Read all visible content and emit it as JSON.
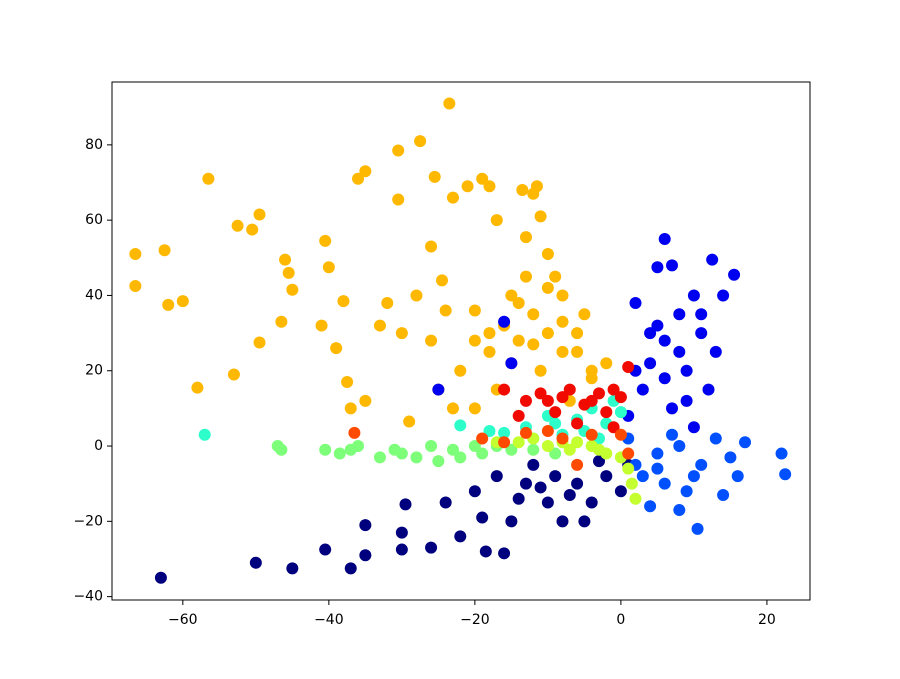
{
  "chart_data": {
    "type": "scatter",
    "xlim": [
      -69.7,
      25.9
    ],
    "ylim": [
      -40.9,
      96.7
    ],
    "xticks": [
      {
        "value": -60,
        "label": "−60"
      },
      {
        "value": -40,
        "label": "−40"
      },
      {
        "value": -20,
        "label": "−20"
      },
      0,
      20
    ],
    "yticks": [
      {
        "value": -40,
        "label": "−40"
      },
      {
        "value": -20,
        "label": "−20"
      },
      0,
      20,
      40,
      60,
      80
    ],
    "grid": false,
    "series": [
      {
        "color": "#ffb800",
        "x": [
          -66.5,
          -66.5,
          -62.5,
          -62,
          -60,
          -56.5,
          -58,
          -53,
          -52.5,
          -50.5,
          -49.5,
          -49.5,
          -46.5,
          -46,
          -45.5,
          -45,
          -41,
          -40.5,
          -40,
          -39,
          -38,
          -37.5,
          -37,
          -36,
          -35,
          -35,
          -33,
          -30.5,
          -30.5,
          -29,
          -27.5,
          -26,
          -25.5,
          -24.5,
          -23.5,
          -23,
          -21,
          -20,
          -19,
          -18,
          -17,
          -13.5,
          -12,
          -11.5,
          -13,
          -11,
          -10,
          -15,
          -12,
          -10,
          -8,
          -14,
          -18,
          -22,
          -25,
          -20,
          -16,
          -6,
          -4,
          -2,
          -8,
          -5,
          -13,
          -9,
          -24,
          -28,
          -26,
          -30,
          -32,
          -23,
          -17,
          -11,
          -7,
          -14,
          -10,
          -6,
          -12,
          -18,
          -8,
          -4,
          -15,
          -20
        ],
        "values": [
          51,
          42.5,
          52,
          37.5,
          38.5,
          71,
          15.5,
          19,
          58.5,
          57.5,
          61.5,
          27.5,
          33,
          49.5,
          46,
          41.5,
          32,
          54.5,
          47.5,
          26,
          38.5,
          17,
          10,
          71,
          73,
          12,
          32,
          78.5,
          65.5,
          6.5,
          81,
          53,
          71.5,
          44,
          91,
          66,
          69,
          36,
          71,
          69,
          60,
          68,
          67,
          69,
          55.5,
          61,
          51,
          40,
          35,
          30,
          25,
          28,
          25,
          20,
          15,
          10,
          32,
          30,
          20,
          22,
          40,
          35,
          45,
          45,
          36,
          40,
          28,
          30,
          38,
          10,
          15,
          20,
          12,
          38,
          42,
          25,
          27,
          30,
          33,
          18,
          22,
          28
        ]
      },
      {
        "color": "#00007f",
        "x": [
          -63,
          -50,
          -45,
          -40.5,
          -37,
          -35,
          -35,
          -30,
          -29.5,
          -30,
          -26,
          -24,
          -22,
          -20,
          -18.5,
          -16,
          -15,
          -13,
          -10,
          -8,
          -6,
          -4,
          -2,
          0,
          -12,
          -17,
          -19,
          -9,
          -5,
          1,
          -14,
          -7,
          -3,
          -11
        ],
        "values": [
          -35,
          -31,
          -32.5,
          -27.5,
          -32.5,
          -29,
          -21,
          -27.5,
          -15.5,
          -23,
          -27,
          -15,
          -24,
          -12,
          -28,
          -28.5,
          -20,
          -10,
          -15,
          -20,
          -10,
          -15,
          -8,
          -12,
          -5,
          -8,
          -19,
          -8,
          -20,
          -5,
          -14,
          -13,
          -4,
          -11
        ]
      },
      {
        "color": "#0000f0",
        "x": [
          6,
          5,
          7,
          12.5,
          15.5,
          2,
          10,
          8,
          11,
          6,
          4,
          9,
          13,
          3,
          7,
          10,
          1,
          5,
          14,
          12,
          2,
          8,
          -16,
          -25,
          -15,
          9,
          11,
          6,
          4
        ],
        "values": [
          55,
          47.5,
          48,
          49.5,
          45.5,
          38,
          40,
          35,
          30,
          28,
          22,
          20,
          25,
          15,
          10,
          5,
          8,
          32,
          40,
          15,
          20,
          25,
          33,
          15,
          22,
          12,
          35,
          18,
          30
        ]
      },
      {
        "color": "#0050ff",
        "x": [
          22,
          22.5,
          17,
          14,
          16,
          10.5,
          8,
          4,
          2,
          5,
          8,
          11,
          13,
          6,
          9,
          1,
          15,
          3,
          7,
          10,
          5
        ],
        "values": [
          -2,
          -7.5,
          1,
          -13,
          -8,
          -22,
          -17,
          -16,
          -5,
          -2,
          0,
          -5,
          2,
          -10,
          -12,
          2,
          -3,
          -8,
          3,
          -8,
          -6
        ]
      },
      {
        "color": "#2cffca",
        "x": [
          -57,
          -22,
          -18,
          -13,
          -10,
          -8,
          -6,
          -4,
          -2,
          0,
          -3,
          -12,
          -16,
          -1,
          -5,
          -9
        ],
        "values": [
          3,
          5.5,
          4,
          5,
          8,
          3,
          7,
          10,
          6,
          9,
          2,
          2,
          3.5,
          12,
          4,
          6
        ]
      },
      {
        "color": "#7dff7a",
        "x": [
          -46.5,
          -47,
          -40.5,
          -38.5,
          -37,
          -36,
          -30,
          -28,
          -25,
          -22,
          -19,
          -15,
          -12,
          -9,
          -33,
          -26,
          -20,
          -31,
          -23,
          -17
        ],
        "values": [
          -1,
          0,
          -1,
          -2,
          -1,
          0,
          -2,
          -3,
          -4,
          -3,
          -2,
          -1,
          -1,
          -2,
          -3,
          0,
          0,
          -1,
          -1,
          0
        ]
      },
      {
        "color": "#c4ff2f",
        "x": [
          -14,
          -10,
          -7,
          -4,
          -2,
          0,
          1,
          1.5,
          2,
          -6,
          -12,
          -17,
          -8,
          -3
        ],
        "values": [
          1,
          0,
          -1,
          0,
          -2,
          -3,
          -6,
          -10,
          -14,
          1,
          2,
          1,
          1,
          -1
        ]
      },
      {
        "color": "#f00a00",
        "x": [
          -16,
          -13,
          -11,
          -9,
          -7,
          -5,
          -3,
          -1,
          0,
          1,
          -14,
          -6,
          -10,
          -2,
          -8,
          -1,
          -4
        ],
        "values": [
          15,
          12,
          14,
          9,
          15,
          11,
          14,
          15,
          13,
          21,
          8,
          6,
          12,
          9,
          13,
          5,
          12
        ]
      },
      {
        "color": "#ff4a00",
        "x": [
          -36.5,
          -19,
          -13,
          -8,
          -4,
          0,
          -16,
          -6,
          1,
          -10
        ],
        "values": [
          3.5,
          2,
          3.5,
          2,
          3,
          3,
          1,
          -5,
          -2,
          4
        ]
      }
    ]
  }
}
